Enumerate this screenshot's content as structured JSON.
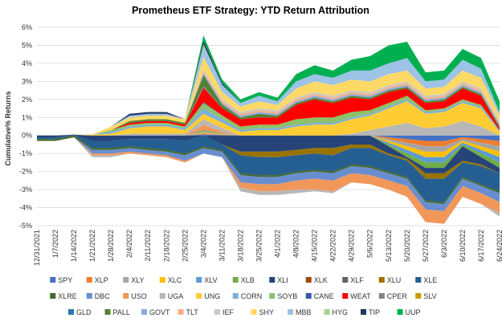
{
  "chart_data": {
    "type": "area",
    "stacked": true,
    "title": "Prometheus ETF Strategy: YTD Return Attribution",
    "xlabel": "",
    "ylabel": "Cumulative% Returns",
    "ylim": [
      -0.05,
      0.06
    ],
    "yticks": [
      "6%",
      "5%",
      "4%",
      "3%",
      "2%",
      "1%",
      "0%",
      "-1%",
      "-2%",
      "-3%",
      "-4%",
      "-5%"
    ],
    "grid": true,
    "legend_position": "bottom",
    "x": [
      "12/31/2021",
      "1/7/2022",
      "1/14/2022",
      "1/21/2022",
      "1/28/2022",
      "2/4/2022",
      "2/11/2022",
      "2/18/2022",
      "2/25/2022",
      "3/4/2022",
      "3/11/2022",
      "3/18/2022",
      "3/25/2022",
      "4/1/2022",
      "4/8/2022",
      "4/15/2022",
      "4/22/2022",
      "4/29/2022",
      "5/6/2022",
      "5/13/2022",
      "5/20/2022",
      "5/27/2022",
      "6/3/2022",
      "6/10/2022",
      "6/17/2022",
      "6/24/2022"
    ],
    "series": [
      {
        "name": "SPY",
        "color": "#4472C4",
        "values": [
          0,
          0,
          0,
          0,
          0,
          0,
          0,
          0,
          0,
          0.0005,
          0.0002,
          0,
          0,
          0,
          0,
          0,
          0,
          0,
          0,
          -0.001,
          -0.002,
          -0.003,
          -0.003,
          -0.001,
          -0.002,
          -0.003
        ]
      },
      {
        "name": "XLP",
        "color": "#ED7D31",
        "values": [
          0,
          0,
          0,
          0,
          0,
          0,
          0,
          0,
          0,
          0.0005,
          0.0002,
          0,
          0,
          0,
          0,
          0,
          0,
          0,
          0,
          -0.001,
          -0.002,
          -0.003,
          -0.003,
          -0.001,
          -0.002,
          -0.003
        ]
      },
      {
        "name": "XLY",
        "color": "#A5A5A5",
        "values": [
          0,
          0,
          0,
          0,
          0,
          0,
          0,
          0,
          0,
          0.0005,
          0.0002,
          0,
          0,
          0,
          0,
          0,
          0,
          0,
          0,
          -0.001,
          -0.002,
          -0.003,
          -0.003,
          -0.001,
          -0.002,
          -0.003
        ]
      },
      {
        "name": "XLC",
        "color": "#FFC000",
        "values": [
          0,
          0,
          0,
          0,
          0,
          0,
          0,
          0,
          0,
          0.0005,
          0.0002,
          0,
          0,
          0,
          0,
          0,
          0,
          0,
          0,
          -0.001,
          -0.002,
          -0.003,
          -0.003,
          -0.001,
          -0.002,
          -0.003
        ]
      },
      {
        "name": "XLV",
        "color": "#5B9BD5",
        "values": [
          0,
          0,
          0,
          0,
          0,
          0,
          0,
          0,
          0,
          0.0005,
          0.0002,
          0,
          0,
          0,
          0,
          0,
          0,
          0,
          0,
          -0.001,
          -0.002,
          -0.003,
          -0.003,
          -0.001,
          -0.002,
          -0.003
        ]
      },
      {
        "name": "XLB",
        "color": "#70AD47",
        "values": [
          0,
          0,
          0,
          0,
          0,
          0,
          0,
          0,
          0,
          0.0005,
          0.0002,
          0,
          0,
          0,
          0,
          0,
          0,
          0,
          0,
          -0.001,
          -0.002,
          -0.003,
          -0.003,
          -0.001,
          -0.002,
          -0.003
        ]
      },
      {
        "name": "XLI",
        "color": "#264478",
        "values": [
          -0.001,
          -0.001,
          0.0005,
          -0.003,
          -0.003,
          -0.002,
          -0.002,
          -0.002,
          -0.003,
          0,
          -0.005,
          -0.009,
          -0.009,
          -0.009,
          -0.008,
          -0.007,
          -0.007,
          -0.005,
          -0.005,
          -0.004,
          -0.001,
          -0.003,
          -0.003,
          -0.008,
          -0.004,
          -0.003
        ]
      },
      {
        "name": "XLK",
        "color": "#9E480E",
        "values": [
          0,
          0,
          0,
          0,
          0,
          0,
          0,
          0,
          0,
          0,
          0,
          0,
          0,
          0,
          0,
          0,
          0,
          0,
          0,
          0,
          0,
          0,
          0,
          0,
          0,
          0
        ]
      },
      {
        "name": "XLF",
        "color": "#636363",
        "values": [
          0,
          0,
          0,
          0,
          0,
          0,
          0,
          0,
          0,
          0,
          0,
          0,
          0,
          0,
          0,
          0,
          0,
          0,
          0,
          0,
          0,
          0,
          0,
          0,
          0,
          0
        ]
      },
      {
        "name": "XLU",
        "color": "#997300",
        "values": [
          0,
          0,
          0,
          0,
          0,
          0,
          0,
          0,
          0,
          0,
          0,
          -0.002,
          -0.003,
          -0.003,
          -0.003,
          -0.003,
          -0.004,
          -0.002,
          -0.002,
          -0.001,
          -0.001,
          -0.003,
          -0.003,
          -0.001,
          -0.001,
          0
        ]
      },
      {
        "name": "XLE",
        "color": "#255E91",
        "values": [
          -0.001,
          -0.001,
          0,
          -0.004,
          -0.004,
          -0.004,
          -0.005,
          -0.006,
          -0.007,
          -0.006,
          -0.003,
          -0.01,
          -0.01,
          -0.01,
          -0.009,
          -0.009,
          -0.009,
          -0.009,
          -0.01,
          -0.009,
          -0.009,
          -0.012,
          -0.013,
          -0.008,
          -0.01,
          -0.01
        ]
      },
      {
        "name": "XLRE",
        "color": "#43682B",
        "values": [
          -0.001,
          -0.001,
          -0.001,
          -0.001,
          -0.001,
          -0.001,
          -0.001,
          -0.001,
          -0.001,
          -0.001,
          -0.001,
          -0.001,
          -0.001,
          -0.001,
          -0.001,
          -0.001,
          -0.001,
          -0.001,
          -0.001,
          -0.001,
          -0.001,
          -0.001,
          -0.001,
          -0.001,
          -0.001,
          -0.001
        ]
      },
      {
        "name": "DBC",
        "color": "#698ED0",
        "values": [
          0,
          0,
          0,
          -0.002,
          -0.002,
          -0.002,
          -0.002,
          -0.002,
          -0.003,
          -0.003,
          -0.003,
          -0.004,
          -0.004,
          -0.004,
          -0.004,
          -0.004,
          -0.004,
          -0.004,
          -0.004,
          -0.004,
          -0.004,
          -0.004,
          -0.004,
          -0.004,
          -0.004,
          -0.005
        ]
      },
      {
        "name": "USO",
        "color": "#F1975A",
        "values": [
          0,
          0,
          0,
          -0.001,
          -0.001,
          -0.001,
          -0.001,
          -0.001,
          -0.001,
          0.003,
          0.001,
          -0.003,
          -0.004,
          -0.004,
          -0.005,
          -0.006,
          -0.006,
          -0.005,
          -0.005,
          -0.005,
          -0.006,
          -0.007,
          -0.007,
          -0.006,
          -0.006,
          -0.006
        ]
      },
      {
        "name": "UGA",
        "color": "#B7B7B7",
        "values": [
          0,
          0,
          0,
          -0.001,
          -0.001,
          0.001,
          0.001,
          0.001,
          0.001,
          0.003,
          0.002,
          -0.002,
          -0.002,
          -0.002,
          -0.002,
          -0.001,
          -0.001,
          0.001,
          0.003,
          0.005,
          0.007,
          0.004,
          0.005,
          0.008,
          0.005,
          -0.002
        ]
      },
      {
        "name": "UNG",
        "color": "#FFCD33",
        "values": [
          0,
          0,
          0,
          0.0005,
          0.001,
          0.003,
          0.004,
          0.004,
          0.002,
          0.003,
          0.003,
          0.002,
          0.003,
          0.003,
          0.005,
          0.006,
          0.006,
          0.008,
          0.008,
          0.01,
          0.012,
          0.008,
          0.008,
          0.01,
          0.01,
          0.002
        ]
      },
      {
        "name": "CORN",
        "color": "#7CAFDD",
        "values": [
          0,
          0,
          0,
          0,
          0.001,
          0.001,
          0.001,
          0.001,
          0.001,
          0.003,
          0.002,
          0.001,
          0.001,
          0.001,
          0.001,
          0.001,
          0.001,
          0.001,
          0.001,
          0.001,
          0.001,
          0.001,
          0.001,
          0.001,
          0.001,
          0.001
        ]
      },
      {
        "name": "SOYB",
        "color": "#8CC168",
        "values": [
          0,
          0,
          0,
          0,
          0.001,
          0.001,
          0.001,
          0.001,
          0.001,
          0.003,
          0.002,
          0.002,
          0.002,
          0.002,
          0.003,
          0.003,
          0.003,
          0.003,
          0.002,
          0.002,
          0.002,
          0.001,
          0.001,
          0.001,
          0.001,
          0
        ]
      },
      {
        "name": "CANE",
        "color": "#335AA1",
        "values": [
          0,
          0,
          0,
          0,
          0,
          0,
          0,
          0,
          0,
          0.0005,
          0,
          0,
          0,
          0,
          0,
          0,
          0,
          0,
          0,
          0,
          0,
          0,
          0,
          0,
          0,
          0
        ]
      },
      {
        "name": "WEAT",
        "color": "#FF0000",
        "values": [
          0,
          0,
          0,
          0,
          0,
          0.001,
          0.001,
          0.001,
          0.001,
          0.008,
          0.004,
          0.004,
          0.004,
          0.004,
          0.008,
          0.01,
          0.008,
          0.008,
          0.006,
          0.006,
          0.004,
          0.004,
          0.004,
          0.006,
          0.005,
          0.001
        ]
      },
      {
        "name": "CPER",
        "color": "#848484",
        "values": [
          0,
          0,
          0,
          0,
          0,
          0,
          0,
          0,
          0,
          0.001,
          0,
          0,
          0,
          0,
          0,
          0,
          0,
          0,
          0,
          0,
          0,
          0,
          0,
          0,
          0,
          0
        ]
      },
      {
        "name": "SLV",
        "color": "#CC9A00",
        "values": [
          0,
          0,
          0,
          0,
          0,
          0,
          0,
          0,
          0,
          0,
          0,
          0,
          0,
          0,
          0,
          0,
          0,
          0,
          0,
          0,
          0,
          0,
          0,
          0,
          0,
          0
        ]
      },
      {
        "name": "GLD",
        "color": "#2E75B6",
        "values": [
          0,
          0,
          0,
          0,
          0,
          0,
          0,
          0,
          0,
          0,
          0,
          0,
          0,
          0,
          0,
          0,
          0,
          0,
          0,
          0,
          0,
          0,
          0,
          0,
          0,
          0
        ]
      },
      {
        "name": "PALL",
        "color": "#548235",
        "values": [
          0,
          0,
          0,
          0,
          0,
          0.001,
          0.001,
          0.001,
          0.001,
          0.006,
          0.002,
          0.001,
          0.002,
          0.001,
          0.001,
          0.001,
          0.001,
          0.001,
          0.001,
          0.001,
          0.001,
          0.001,
          0.001,
          0.001,
          0.001,
          0.001
        ]
      },
      {
        "name": "GOVT",
        "color": "#8FAADC",
        "values": [
          0,
          0,
          0,
          0,
          0,
          0,
          0,
          0,
          0,
          0.001,
          0.001,
          0.001,
          0.001,
          0.001,
          0.001,
          0.001,
          0.001,
          0.001,
          0.001,
          0.001,
          0.001,
          0.001,
          0.001,
          0.001,
          0.001,
          0.001
        ]
      },
      {
        "name": "TLT",
        "color": "#F4B183",
        "values": [
          0,
          0,
          0,
          0,
          0,
          0,
          0,
          0,
          0,
          0.001,
          0.001,
          0.001,
          0.001,
          0.001,
          0.001,
          0.001,
          0.001,
          0.001,
          0.001,
          0.001,
          0.001,
          0.001,
          0.001,
          0.001,
          0.001,
          0.001
        ]
      },
      {
        "name": "IEF",
        "color": "#C9C9C9",
        "values": [
          0,
          0,
          0,
          0,
          0,
          0,
          0,
          0,
          0,
          0.001,
          0.001,
          0.001,
          0.001,
          0.001,
          0.001,
          0.001,
          0.001,
          0.001,
          0.001,
          0.001,
          0.001,
          0.001,
          0.001,
          0.001,
          0.001,
          0.001
        ]
      },
      {
        "name": "SHY",
        "color": "#FFD966",
        "values": [
          0,
          0,
          0,
          0,
          0.002,
          0.002,
          0.002,
          0.002,
          0.002,
          0.007,
          0.004,
          0.003,
          0.004,
          0.003,
          0.005,
          0.006,
          0.006,
          0.006,
          0.006,
          0.006,
          0.006,
          0.004,
          0.004,
          0.006,
          0.006,
          0.003
        ]
      },
      {
        "name": "MBB",
        "color": "#9DC3E6",
        "values": [
          0,
          0,
          0,
          0,
          0,
          0.001,
          0.001,
          0.001,
          0,
          0.006,
          0.004,
          0.002,
          0.003,
          0.002,
          0.004,
          0.004,
          0.004,
          0.005,
          0.006,
          0.006,
          0.007,
          0.004,
          0.004,
          0.006,
          0.005,
          0.002
        ]
      },
      {
        "name": "HYG",
        "color": "#A9D18E",
        "values": [
          0,
          0,
          0,
          0,
          0,
          0,
          0,
          0,
          0,
          0.001,
          0,
          0,
          0,
          0,
          0,
          0,
          0,
          0,
          0,
          0,
          0,
          0,
          0,
          0,
          0,
          0
        ]
      },
      {
        "name": "TIP",
        "color": "#1F3864",
        "values": [
          0,
          0,
          0,
          0,
          0,
          0.001,
          0.001,
          0.001,
          0,
          0.002,
          0.001,
          0,
          0,
          0,
          0,
          0,
          0,
          0,
          0,
          0,
          0,
          0,
          0,
          0,
          0,
          0
        ]
      },
      {
        "name": "UUP",
        "color": "#00B050",
        "values": [
          0,
          0,
          0,
          0,
          0,
          0,
          0,
          0,
          0,
          0.003,
          0.002,
          0.002,
          0.002,
          0.002,
          0.004,
          0.005,
          0.004,
          0.006,
          0.008,
          0.01,
          0.009,
          0.005,
          0.005,
          0.006,
          0.006,
          0.006
        ]
      }
    ]
  }
}
